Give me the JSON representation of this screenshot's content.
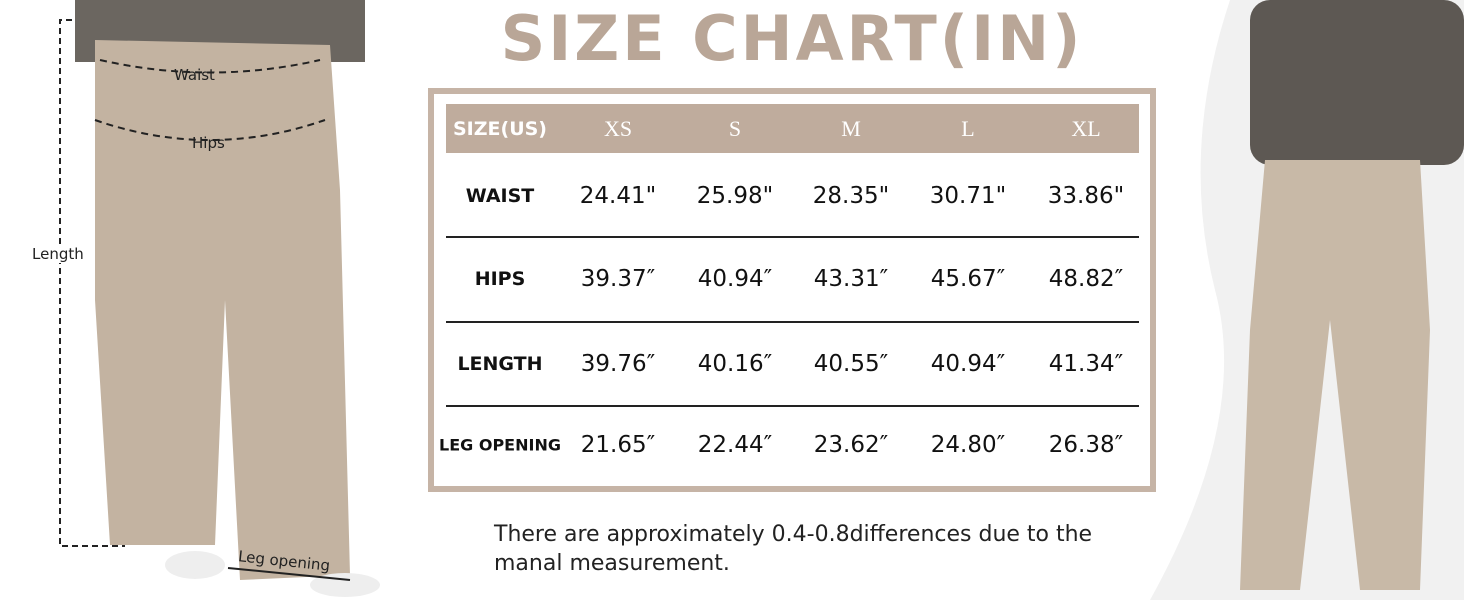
{
  "title": "SIZE CHART(IN)",
  "table": {
    "header": [
      "SIZE(US)",
      "XS",
      "S",
      "M",
      "L",
      "XL"
    ],
    "rows": [
      [
        "WAIST",
        "24.41\"",
        "25.98\"",
        "28.35\"",
        "30.71\"",
        "33.86\""
      ],
      [
        "HIPS",
        "39.37″",
        "40.94″",
        "43.31″",
        "45.67″",
        "48.82″"
      ],
      [
        "LENGTH",
        "39.76″",
        "40.16″",
        "40.55″",
        "40.94″",
        "41.34″"
      ],
      [
        "LEG OPENING",
        "21.65″",
        "22.44″",
        "23.62″",
        "24.80″",
        "26.38″"
      ]
    ]
  },
  "note": "There are approximately 0.4-0.8differences due to the manal  measurement.",
  "measure_labels": {
    "waist": "Waist",
    "hips": "Hips",
    "length": "Length",
    "leg_opening": "Leg opening"
  }
}
